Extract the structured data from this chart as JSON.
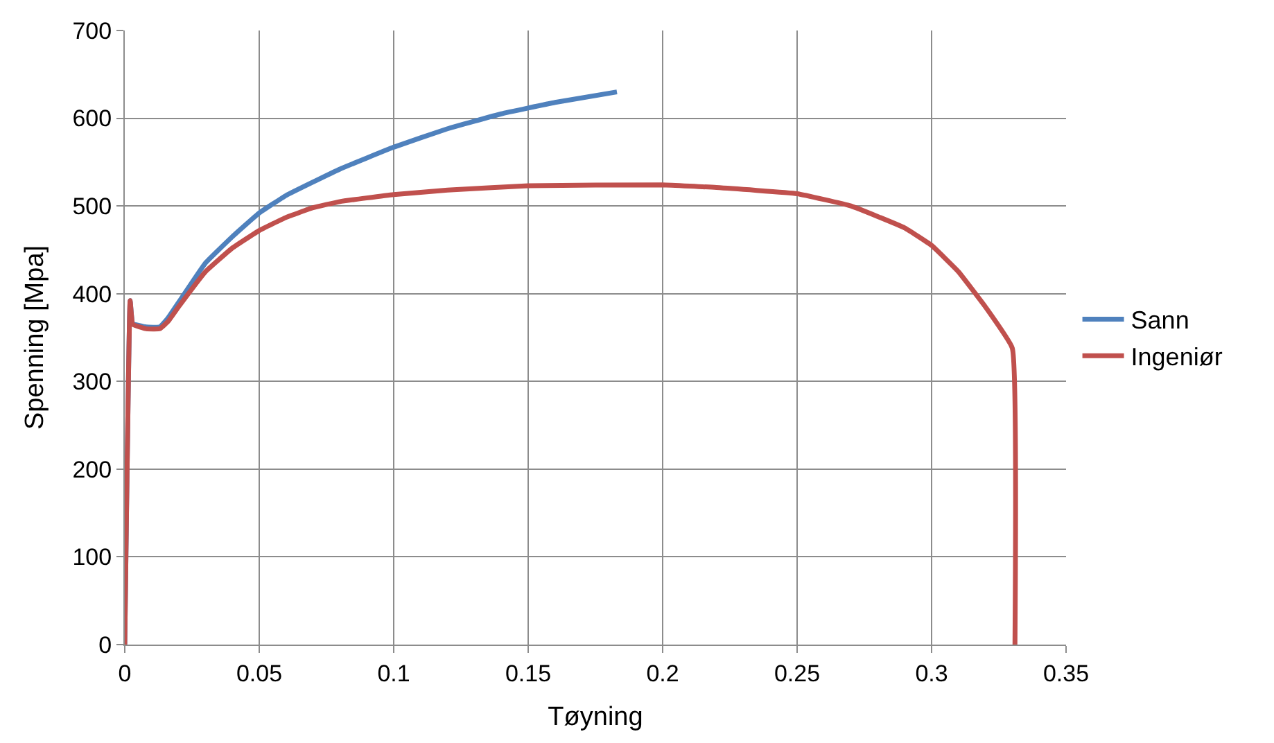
{
  "chart_data": {
    "type": "line",
    "xlabel": "Tøyning",
    "ylabel": "Spenning [Mpa]",
    "xlim": [
      0,
      0.35
    ],
    "xticks": [
      0,
      0.05,
      0.1,
      0.15,
      0.2,
      0.25,
      0.3,
      0.35
    ],
    "ylim": [
      0,
      700
    ],
    "yticks": [
      0,
      100,
      200,
      300,
      400,
      500,
      600,
      700
    ],
    "grid": true,
    "legend": "right",
    "marker": "none",
    "line_style": "solid",
    "series": [
      {
        "name": "Sann",
        "color": "#4f81bd",
        "x": [
          0,
          0.002,
          0.003,
          0.008,
          0.013,
          0.016,
          0.02,
          0.03,
          0.04,
          0.05,
          0.06,
          0.08,
          0.1,
          0.12,
          0.14,
          0.16,
          0.183
        ],
        "values": [
          0,
          392,
          366,
          362,
          362,
          372,
          390,
          435,
          465,
          492,
          512,
          542,
          567,
          588,
          605,
          618,
          630
        ]
      },
      {
        "name": "Ingeniør",
        "color": "#c0504d",
        "x": [
          0,
          0.002,
          0.003,
          0.008,
          0.013,
          0.016,
          0.02,
          0.03,
          0.04,
          0.05,
          0.06,
          0.07,
          0.08,
          0.1,
          0.12,
          0.15,
          0.2,
          0.22,
          0.25,
          0.27,
          0.29,
          0.3,
          0.31,
          0.32,
          0.33,
          0.331
        ],
        "values": [
          0,
          392,
          365,
          360,
          360,
          368,
          385,
          425,
          452,
          472,
          487,
          498,
          505,
          513,
          518,
          523,
          524,
          521,
          514,
          500,
          475,
          455,
          425,
          385,
          338,
          0
        ]
      }
    ]
  }
}
